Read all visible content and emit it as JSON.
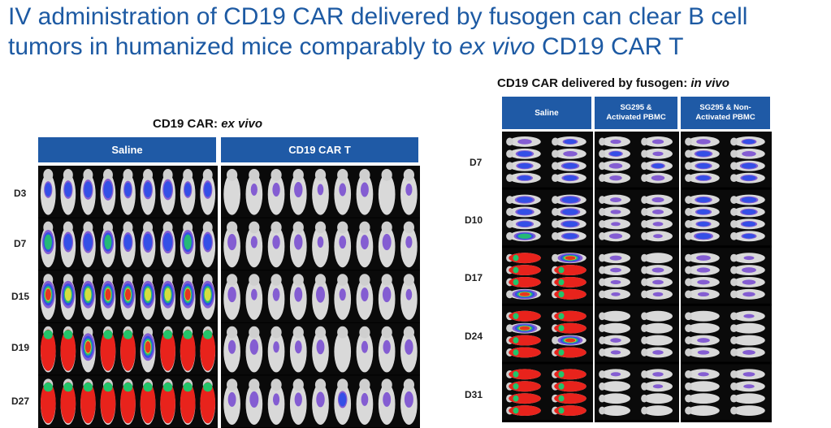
{
  "slide": {
    "title_pre": "IV administration of CD19 CAR delivered by fusogen can clear B cell tumors in humanized mice comparably to ",
    "title_em": "ex vivo",
    "title_post": " CD19 CAR T"
  },
  "left_panel": {
    "title_bold": "CD19 CAR: ",
    "title_em": "ex vivo",
    "groups": [
      {
        "label": "Saline"
      },
      {
        "label": "CD19 CAR T"
      }
    ],
    "days": [
      "D3",
      "D7",
      "D15",
      "D19",
      "D27"
    ],
    "mice_per_group": [
      9,
      9
    ],
    "signal_levels": {
      "saline": [
        0.35,
        0.45,
        0.8,
        0.95,
        1.0
      ],
      "car_t": [
        0.12,
        0.15,
        0.15,
        0.12,
        0.18
      ]
    }
  },
  "right_panel": {
    "title_bold": "CD19 CAR delivered by fusogen: ",
    "title_em": "in vivo",
    "groups": [
      {
        "label": "Saline"
      },
      {
        "label_lines": [
          "SG295 &",
          "Activated PBMC"
        ]
      },
      {
        "label_lines": [
          "SG295 & Non-",
          "Activated PBMC"
        ]
      }
    ],
    "days": [
      "D7",
      "D10",
      "D17",
      "D24",
      "D31"
    ],
    "signal_levels": {
      "saline": [
        0.3,
        0.45,
        0.9,
        0.95,
        1.0
      ],
      "sg295_activated": [
        0.2,
        0.15,
        0.1,
        0.05,
        0.05
      ],
      "sg295_non_activated": [
        0.3,
        0.35,
        0.15,
        0.08,
        0.05
      ]
    }
  },
  "colors": {
    "title_blue": "#1d5aa3",
    "header_blue": "#1f5aa6"
  }
}
